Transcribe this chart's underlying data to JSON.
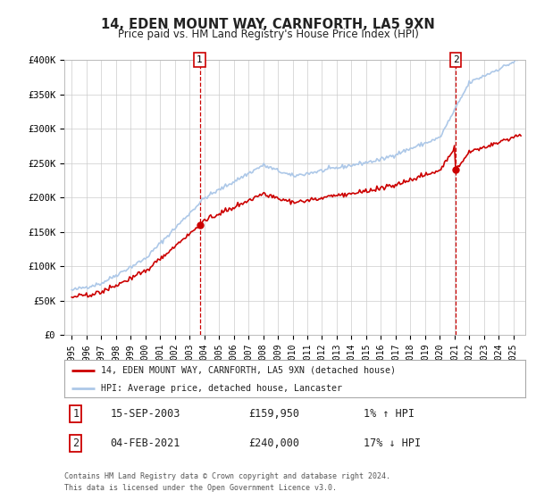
{
  "title": "14, EDEN MOUNT WAY, CARNFORTH, LA5 9XN",
  "subtitle": "Price paid vs. HM Land Registry's House Price Index (HPI)",
  "sale1_date": "15-SEP-2003",
  "sale1_price": 159950,
  "sale1_label": "1",
  "sale1_hpi_pct": "1% ↑ HPI",
  "sale2_date": "04-FEB-2021",
  "sale2_price": 240000,
  "sale2_label": "2",
  "sale2_hpi_pct": "17% ↓ HPI",
  "legend_line1": "14, EDEN MOUNT WAY, CARNFORTH, LA5 9XN (detached house)",
  "legend_line2": "HPI: Average price, detached house, Lancaster",
  "footer1": "Contains HM Land Registry data © Crown copyright and database right 2024.",
  "footer2": "This data is licensed under the Open Government Licence v3.0.",
  "hpi_color": "#adc8e8",
  "sale_color": "#cc0000",
  "marker_color": "#cc0000",
  "ylim_min": 0,
  "ylim_max": 400000,
  "bg_color": "#ffffff",
  "grid_color": "#cccccc",
  "sale1_year": 2003.71,
  "sale2_year": 2021.09
}
